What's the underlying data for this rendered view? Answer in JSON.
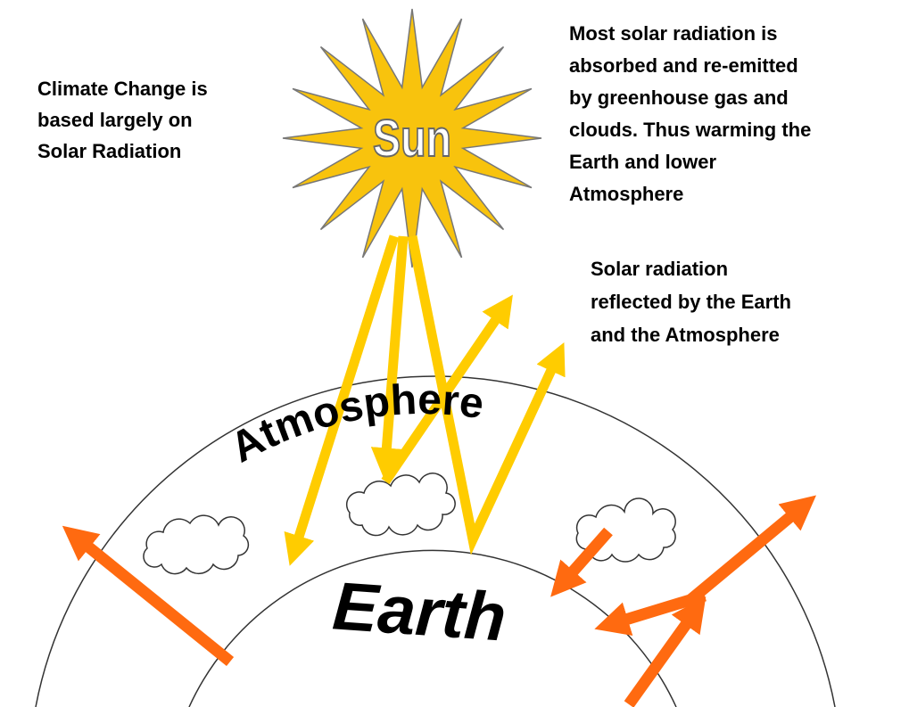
{
  "sun_label": "Sun",
  "left_note": {
    "lines": [
      "Climate Change is",
      "based largely on",
      "Solar Radiation"
    ]
  },
  "absorbed_note": {
    "lines": [
      "Most solar radiation is",
      "absorbed and re-emitted",
      "by greenhouse gas and",
      "clouds. Thus warming the",
      "Earth and lower",
      "Atmosphere"
    ]
  },
  "reflected_note": {
    "lines": [
      "Solar radiation",
      "reflected by the Earth",
      "and the Atmosphere"
    ]
  },
  "atmosphere_label": "Atmosphere",
  "earth_label": "Earth"
}
